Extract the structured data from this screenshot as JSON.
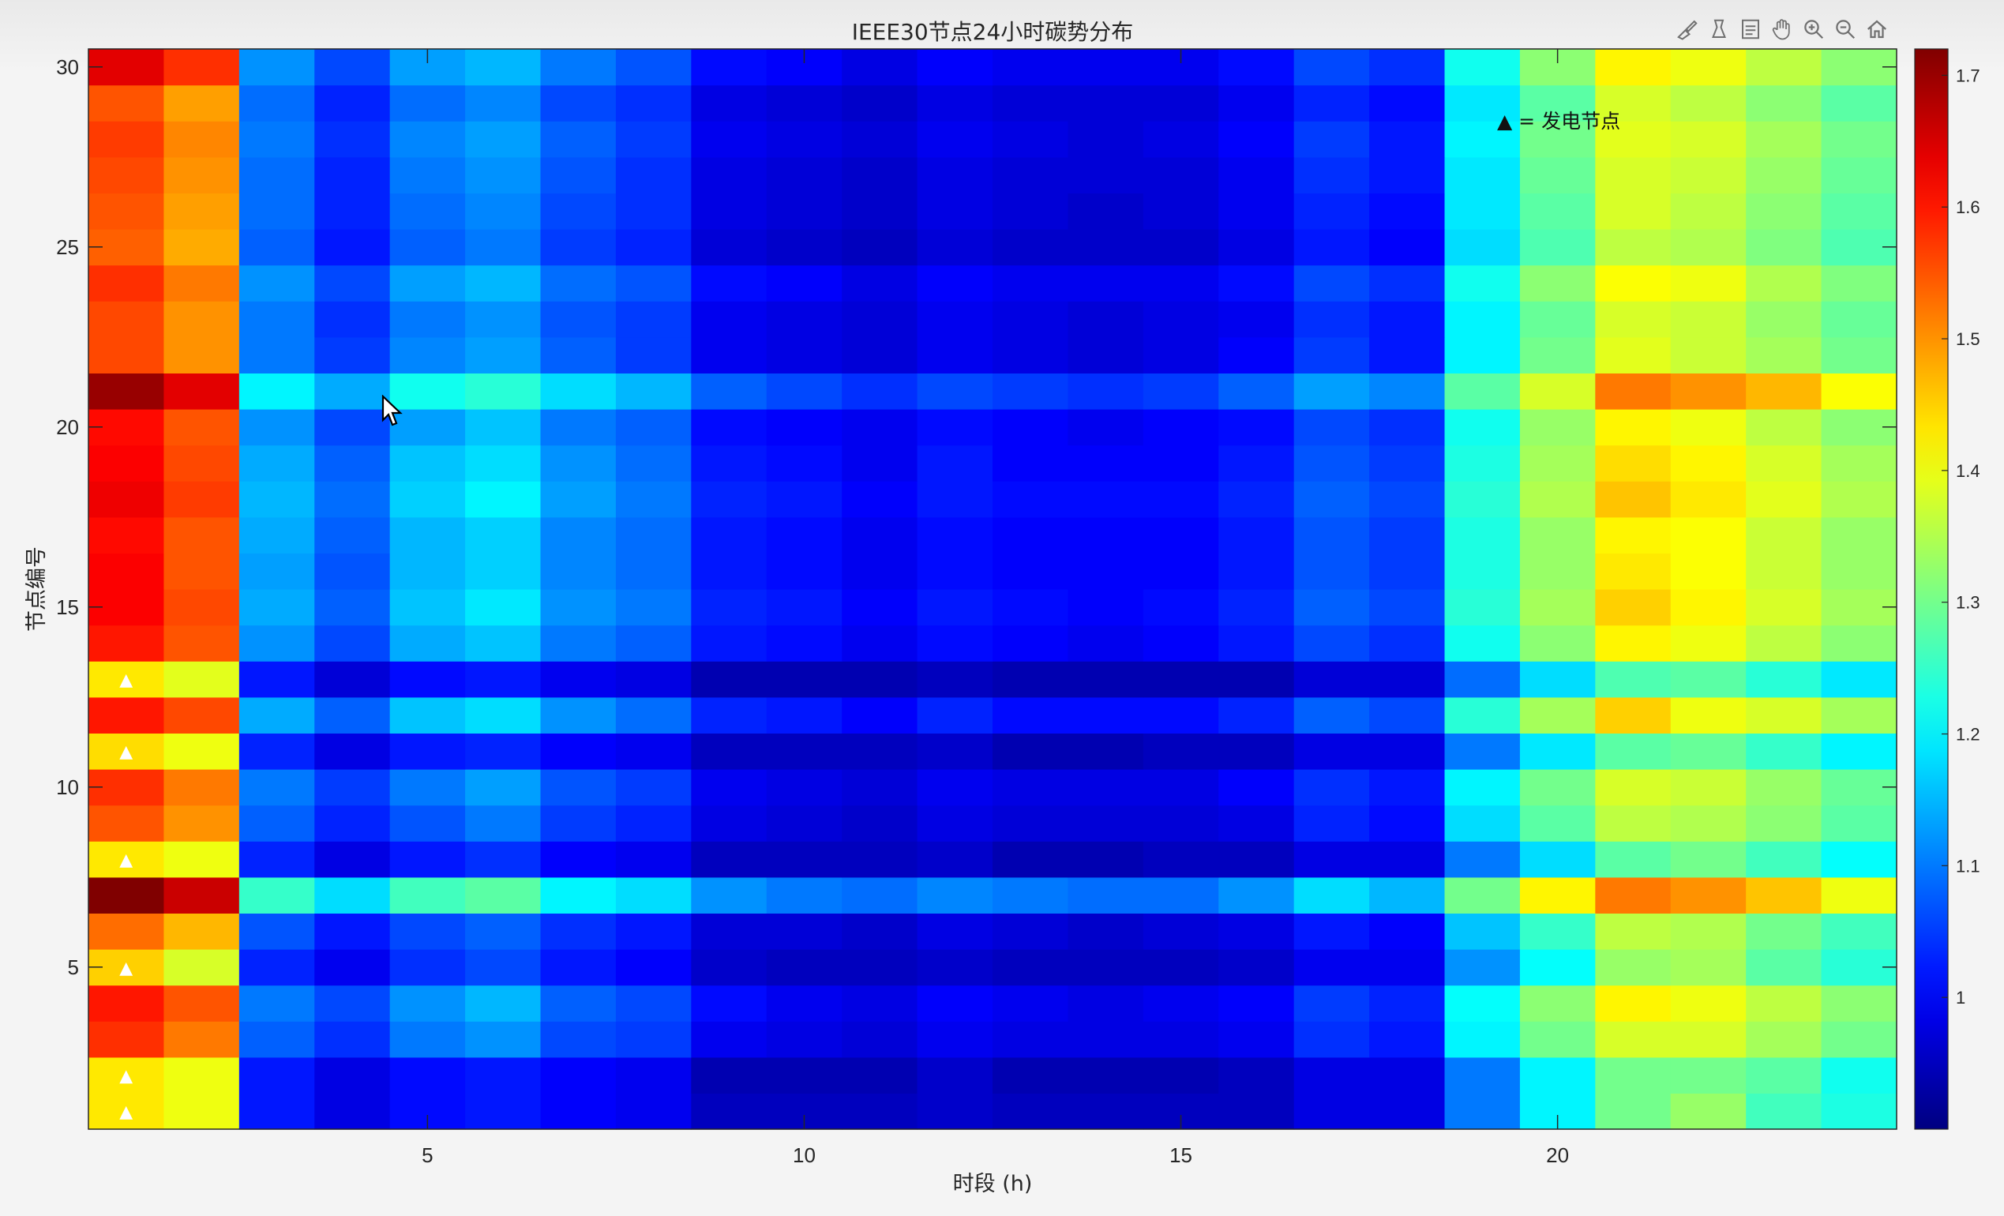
{
  "chart_data": {
    "type": "heatmap",
    "title": "IEEE30节点24小时碳势分布",
    "xlabel": "时段 (h)",
    "ylabel": "节点编号",
    "x_ticks": [
      5,
      10,
      15,
      20
    ],
    "y_ticks": [
      5,
      10,
      15,
      20,
      25,
      30
    ],
    "x_range": [
      0.5,
      24.5
    ],
    "y_range": [
      0.5,
      30.5
    ],
    "colorbar_ticks": [
      1,
      1.1,
      1.2,
      1.3,
      1.4,
      1.5,
      1.6,
      1.7
    ],
    "colorbar_ticks_text": [
      "1",
      "1.1",
      "1.2",
      "1.3",
      "1.4",
      "1.5",
      "1.6",
      "1.7"
    ],
    "color_range": [
      0.9,
      1.72
    ],
    "colormap": "jet",
    "legend": "▲ = 发电节点",
    "generator_marker": "▲",
    "generator_nodes": [
      1,
      2,
      5,
      8,
      11,
      13
    ],
    "hours": [
      1,
      2,
      3,
      4,
      5,
      6,
      7,
      8,
      9,
      10,
      11,
      12,
      13,
      14,
      15,
      16,
      17,
      18,
      19,
      20,
      21,
      22,
      23,
      24
    ],
    "values_by_node": [
      [
        1.43,
        1.4,
        1.02,
        0.98,
        1.01,
        1.02,
        1.0,
        0.99,
        0.95,
        0.95,
        0.95,
        0.96,
        0.95,
        0.95,
        0.95,
        0.95,
        0.98,
        0.98,
        1.1,
        1.2,
        1.3,
        1.33,
        1.26,
        1.23
      ],
      [
        1.43,
        1.4,
        1.02,
        0.98,
        1.01,
        1.02,
        1.0,
        0.99,
        0.94,
        0.94,
        0.94,
        0.96,
        0.94,
        0.94,
        0.94,
        0.95,
        0.98,
        0.98,
        1.1,
        1.2,
        1.3,
        1.3,
        1.28,
        1.22
      ],
      [
        1.58,
        1.52,
        1.08,
        1.04,
        1.1,
        1.12,
        1.06,
        1.05,
        0.99,
        0.98,
        0.97,
        0.99,
        0.98,
        0.98,
        0.98,
        0.99,
        1.04,
        1.02,
        1.2,
        1.3,
        1.38,
        1.38,
        1.34,
        1.3
      ],
      [
        1.6,
        1.55,
        1.1,
        1.06,
        1.12,
        1.15,
        1.08,
        1.06,
        1.01,
        0.99,
        0.98,
        1.0,
        0.99,
        0.98,
        0.99,
        1.0,
        1.05,
        1.03,
        1.21,
        1.32,
        1.42,
        1.4,
        1.36,
        1.32
      ],
      [
        1.45,
        1.38,
        1.03,
        0.99,
        1.04,
        1.06,
        1.02,
        1.0,
        0.96,
        0.95,
        0.95,
        0.96,
        0.95,
        0.95,
        0.95,
        0.96,
        0.99,
        0.99,
        1.12,
        1.21,
        1.33,
        1.34,
        1.28,
        1.24
      ],
      [
        1.53,
        1.47,
        1.07,
        1.02,
        1.06,
        1.08,
        1.04,
        1.02,
        0.97,
        0.97,
        0.96,
        0.98,
        0.97,
        0.96,
        0.97,
        0.98,
        1.02,
        1.0,
        1.16,
        1.25,
        1.36,
        1.35,
        1.3,
        1.26
      ],
      [
        1.72,
        1.66,
        1.25,
        1.18,
        1.26,
        1.28,
        1.2,
        1.18,
        1.12,
        1.1,
        1.09,
        1.11,
        1.1,
        1.09,
        1.09,
        1.12,
        1.18,
        1.15,
        1.3,
        1.42,
        1.52,
        1.5,
        1.46,
        1.4
      ],
      [
        1.43,
        1.4,
        1.03,
        0.98,
        1.02,
        1.04,
        1.0,
        0.99,
        0.95,
        0.95,
        0.95,
        0.96,
        0.94,
        0.94,
        0.95,
        0.95,
        0.98,
        0.98,
        1.1,
        1.18,
        1.28,
        1.3,
        1.26,
        1.21
      ],
      [
        1.55,
        1.5,
        1.08,
        1.03,
        1.07,
        1.1,
        1.05,
        1.03,
        0.98,
        0.97,
        0.96,
        0.98,
        0.97,
        0.97,
        0.97,
        0.98,
        1.03,
        1.01,
        1.18,
        1.28,
        1.36,
        1.35,
        1.32,
        1.28
      ],
      [
        1.58,
        1.52,
        1.1,
        1.05,
        1.1,
        1.13,
        1.07,
        1.05,
        0.99,
        0.98,
        0.97,
        0.99,
        0.98,
        0.98,
        0.98,
        1.0,
        1.04,
        1.02,
        1.2,
        1.3,
        1.38,
        1.37,
        1.33,
        1.29
      ],
      [
        1.44,
        1.4,
        1.03,
        0.98,
        1.02,
        1.03,
        1.0,
        0.99,
        0.95,
        0.95,
        0.95,
        0.96,
        0.94,
        0.94,
        0.95,
        0.95,
        0.98,
        0.98,
        1.1,
        1.19,
        1.28,
        1.29,
        1.25,
        1.2
      ],
      [
        1.6,
        1.56,
        1.14,
        1.08,
        1.16,
        1.18,
        1.12,
        1.09,
        1.03,
        1.02,
        1.0,
        1.03,
        1.01,
        1.01,
        1.01,
        1.03,
        1.08,
        1.06,
        1.24,
        1.34,
        1.45,
        1.4,
        1.38,
        1.34
      ],
      [
        1.43,
        1.39,
        1.02,
        0.97,
        1.01,
        1.02,
        0.99,
        0.98,
        0.94,
        0.94,
        0.94,
        0.95,
        0.94,
        0.94,
        0.94,
        0.94,
        0.97,
        0.97,
        1.09,
        1.18,
        1.27,
        1.28,
        1.24,
        1.19
      ],
      [
        1.6,
        1.55,
        1.12,
        1.06,
        1.14,
        1.16,
        1.1,
        1.08,
        1.02,
        1.01,
        0.99,
        1.01,
        1.0,
        0.99,
        1.0,
        1.02,
        1.06,
        1.04,
        1.22,
        1.32,
        1.42,
        1.4,
        1.36,
        1.32
      ],
      [
        1.62,
        1.56,
        1.14,
        1.08,
        1.16,
        1.19,
        1.12,
        1.1,
        1.03,
        1.02,
        1.0,
        1.02,
        1.01,
        1.0,
        1.01,
        1.03,
        1.08,
        1.06,
        1.24,
        1.34,
        1.45,
        1.42,
        1.38,
        1.34
      ],
      [
        1.62,
        1.55,
        1.13,
        1.07,
        1.15,
        1.17,
        1.11,
        1.09,
        1.02,
        1.01,
        0.99,
        1.01,
        1.0,
        1.0,
        1.0,
        1.02,
        1.07,
        1.05,
        1.23,
        1.33,
        1.43,
        1.41,
        1.37,
        1.33
      ],
      [
        1.61,
        1.55,
        1.14,
        1.08,
        1.15,
        1.17,
        1.11,
        1.09,
        1.02,
        1.01,
        0.99,
        1.01,
        1.0,
        1.0,
        1.0,
        1.02,
        1.07,
        1.05,
        1.23,
        1.33,
        1.42,
        1.41,
        1.37,
        1.33
      ],
      [
        1.63,
        1.57,
        1.15,
        1.09,
        1.17,
        1.2,
        1.13,
        1.1,
        1.03,
        1.02,
        1.0,
        1.02,
        1.01,
        1.01,
        1.01,
        1.03,
        1.08,
        1.06,
        1.24,
        1.35,
        1.46,
        1.43,
        1.39,
        1.35
      ],
      [
        1.62,
        1.56,
        1.14,
        1.08,
        1.16,
        1.18,
        1.12,
        1.09,
        1.02,
        1.01,
        0.99,
        1.02,
        1.0,
        1.0,
        1.0,
        1.02,
        1.07,
        1.05,
        1.23,
        1.34,
        1.44,
        1.42,
        1.38,
        1.34
      ],
      [
        1.61,
        1.55,
        1.12,
        1.06,
        1.13,
        1.16,
        1.1,
        1.08,
        1.01,
        1.0,
        0.99,
        1.01,
        1.0,
        0.99,
        1.0,
        1.01,
        1.06,
        1.04,
        1.22,
        1.33,
        1.42,
        1.4,
        1.36,
        1.32
      ],
      [
        1.7,
        1.64,
        1.2,
        1.14,
        1.22,
        1.24,
        1.18,
        1.15,
        1.08,
        1.06,
        1.04,
        1.06,
        1.05,
        1.04,
        1.05,
        1.08,
        1.13,
        1.11,
        1.28,
        1.38,
        1.52,
        1.5,
        1.47,
        1.41
      ],
      [
        1.56,
        1.5,
        1.1,
        1.05,
        1.11,
        1.13,
        1.08,
        1.05,
        0.99,
        0.98,
        0.97,
        0.99,
        0.98,
        0.97,
        0.98,
        1.0,
        1.05,
        1.02,
        1.2,
        1.3,
        1.39,
        1.37,
        1.34,
        1.3
      ],
      [
        1.56,
        1.5,
        1.1,
        1.04,
        1.1,
        1.12,
        1.07,
        1.05,
        0.99,
        0.98,
        0.97,
        0.99,
        0.98,
        0.97,
        0.98,
        0.99,
        1.04,
        1.02,
        1.2,
        1.29,
        1.38,
        1.37,
        1.33,
        1.29
      ],
      [
        1.58,
        1.52,
        1.12,
        1.06,
        1.13,
        1.15,
        1.09,
        1.07,
        1.01,
        1.0,
        0.98,
        1.0,
        0.99,
        0.99,
        0.99,
        1.01,
        1.06,
        1.04,
        1.22,
        1.32,
        1.41,
        1.4,
        1.35,
        1.31
      ],
      [
        1.54,
        1.48,
        1.08,
        1.02,
        1.08,
        1.1,
        1.05,
        1.03,
        0.97,
        0.96,
        0.95,
        0.97,
        0.96,
        0.96,
        0.96,
        0.98,
        1.02,
        1.0,
        1.18,
        1.27,
        1.36,
        1.35,
        1.31,
        1.27
      ],
      [
        1.55,
        1.49,
        1.09,
        1.03,
        1.09,
        1.11,
        1.06,
        1.04,
        0.98,
        0.97,
        0.96,
        0.98,
        0.97,
        0.96,
        0.97,
        0.99,
        1.03,
        1.01,
        1.19,
        1.28,
        1.38,
        1.36,
        1.32,
        1.28
      ],
      [
        1.56,
        1.5,
        1.09,
        1.03,
        1.1,
        1.12,
        1.07,
        1.04,
        0.98,
        0.97,
        0.96,
        0.98,
        0.97,
        0.97,
        0.97,
        0.99,
        1.04,
        1.02,
        1.19,
        1.29,
        1.38,
        1.37,
        1.33,
        1.29
      ],
      [
        1.57,
        1.51,
        1.1,
        1.04,
        1.11,
        1.13,
        1.08,
        1.05,
        0.99,
        0.98,
        0.97,
        0.99,
        0.98,
        0.97,
        0.98,
        1.0,
        1.05,
        1.02,
        1.2,
        1.3,
        1.39,
        1.38,
        1.34,
        1.3
      ],
      [
        1.55,
        1.49,
        1.09,
        1.03,
        1.09,
        1.11,
        1.06,
        1.04,
        0.98,
        0.97,
        0.96,
        0.98,
        0.97,
        0.97,
        0.97,
        0.99,
        1.03,
        1.01,
        1.19,
        1.28,
        1.38,
        1.36,
        1.32,
        1.28
      ],
      [
        1.64,
        1.58,
        1.12,
        1.06,
        1.13,
        1.15,
        1.1,
        1.07,
        1.01,
        1.0,
        0.98,
        1.0,
        0.99,
        0.99,
        0.99,
        1.01,
        1.06,
        1.04,
        1.22,
        1.32,
        1.42,
        1.4,
        1.36,
        1.32
      ]
    ]
  },
  "toolbar": {
    "icons": [
      "brush-icon",
      "data-tips-icon",
      "legend-icon",
      "pan-icon",
      "zoom-in-icon",
      "zoom-out-icon",
      "home-icon"
    ]
  }
}
